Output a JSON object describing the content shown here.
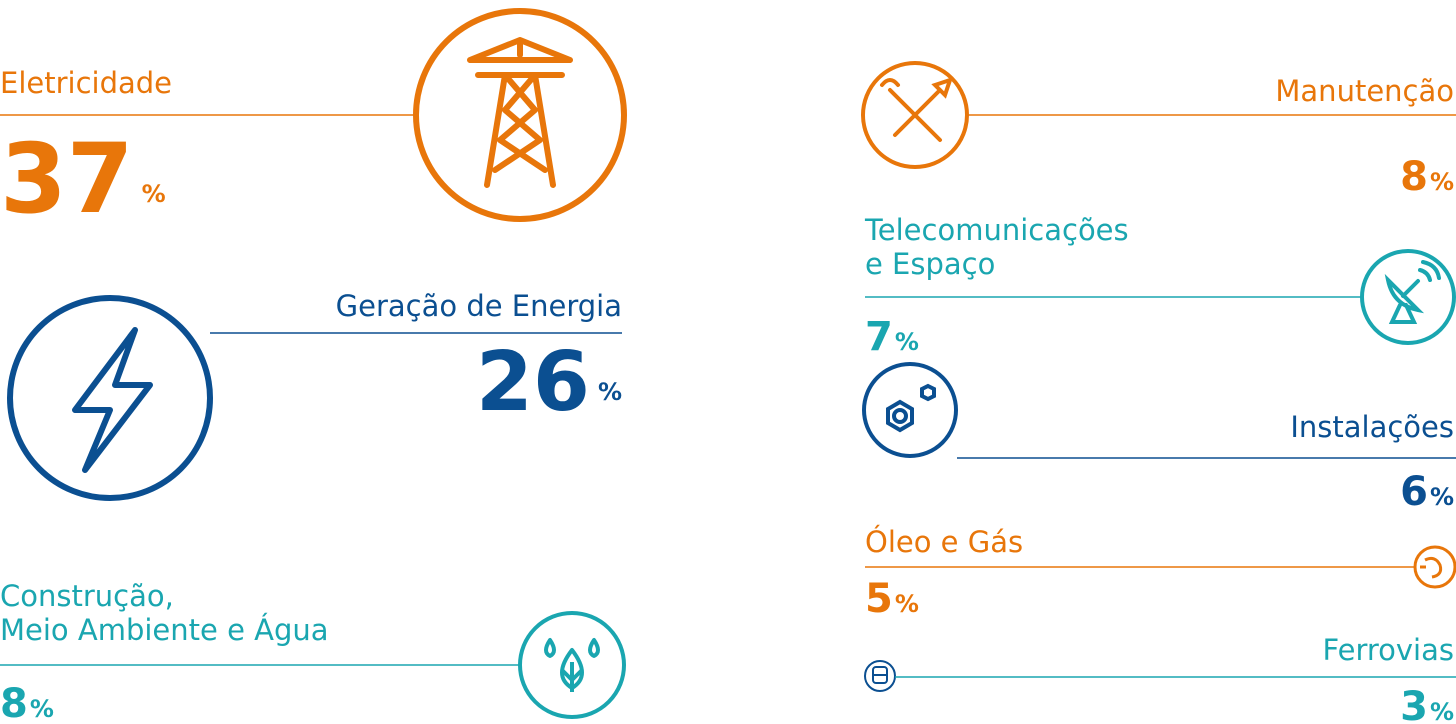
{
  "items": [
    {
      "label": [
        "Eletricidade"
      ],
      "value": 37,
      "unit": "%",
      "color": "#e8760a"
    },
    {
      "label": [
        "Geração de Energia"
      ],
      "value": 26,
      "unit": "%",
      "color": "#0b4f91"
    },
    {
      "label": [
        "Construção,",
        "Meio Ambiente e Água"
      ],
      "value": 8,
      "unit": "%",
      "color": "#1aa6b0"
    },
    {
      "label": [
        "Manutenção"
      ],
      "value": 8,
      "unit": "%",
      "color": "#e8760a"
    },
    {
      "label": [
        "Telecomunicações",
        "e Espaço"
      ],
      "value": 7,
      "unit": "%",
      "color": "#1aa6b0"
    },
    {
      "label": [
        "Instalações"
      ],
      "value": 6,
      "unit": "%",
      "color": "#0b4f91"
    },
    {
      "label": [
        "Óleo e Gás"
      ],
      "value": 5,
      "unit": "%",
      "color": "#e8760a"
    },
    {
      "label": [
        "Ferrovias"
      ],
      "value": 3,
      "unit": "%",
      "color": "#1aa6b0"
    }
  ]
}
